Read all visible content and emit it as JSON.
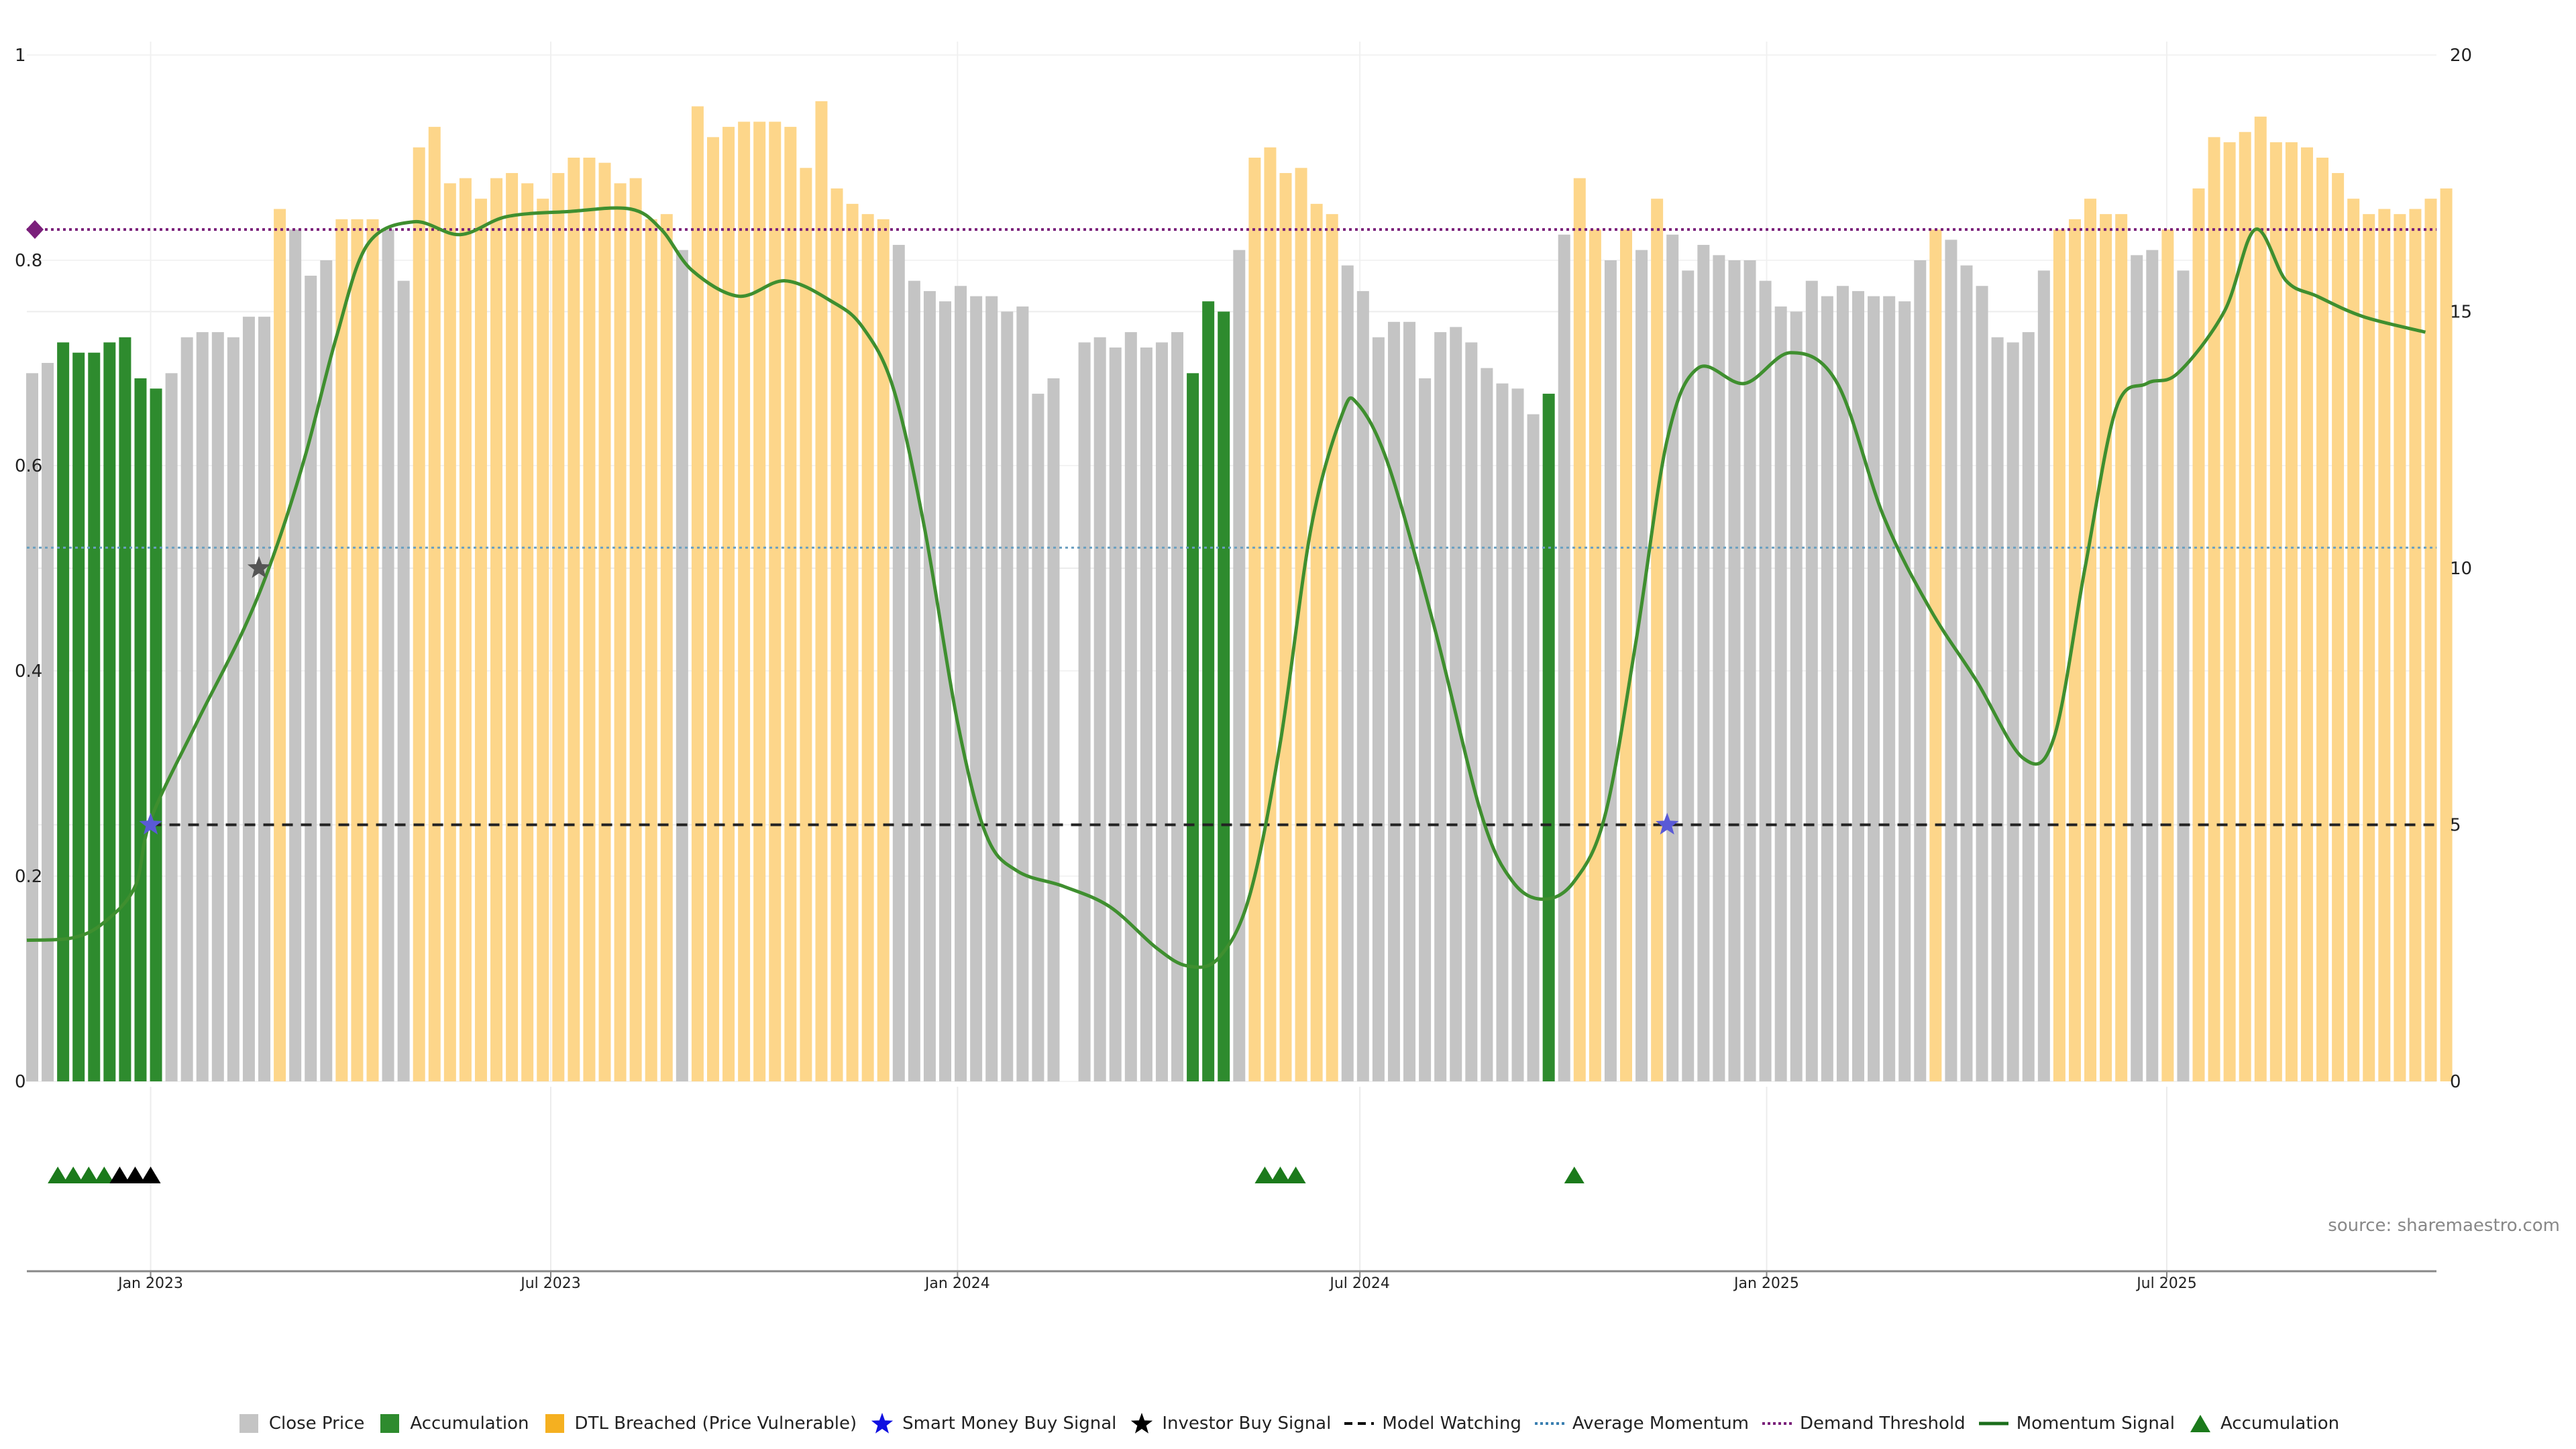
{
  "source_label": "source: sharemaestro.com",
  "colors": {
    "close": "#c4c4c4",
    "accumulation": "#2e8b2e",
    "dtl": "#fdd68a",
    "momentum_line": "#3f8f2f",
    "momentum_highlight": "#8a9a10",
    "smart_money": "#5a5ad6",
    "investor": "#555555",
    "watching": "#222222",
    "avg_momentum": "#6a9fc0",
    "demand": "#7a1f7a",
    "triangle_green": "#1b7a1b",
    "triangle_black": "#000000"
  },
  "legend": [
    {
      "label": "Close Price",
      "icon": "square-gray-icon"
    },
    {
      "label": "Accumulation",
      "icon": "square-green-icon"
    },
    {
      "label": "DTL Breached (Price Vulnerable)",
      "icon": "square-orange-icon"
    },
    {
      "label": "Smart Money Buy Signal",
      "icon": "star-blue-icon"
    },
    {
      "label": "Investor Buy Signal",
      "icon": "star-black-icon"
    },
    {
      "label": "Model Watching",
      "icon": "dashed-line-icon"
    },
    {
      "label": "Average Momentum",
      "icon": "dotted-blue-line-icon"
    },
    {
      "label": "Demand Threshold",
      "icon": "dotted-purple-line-icon"
    },
    {
      "label": "Momentum Signal",
      "icon": "solid-green-line-icon"
    },
    {
      "label": "Accumulation",
      "icon": "triangle-green-icon"
    }
  ],
  "chart_data": {
    "type": "bar",
    "left_axis": {
      "ticks": [
        "0",
        "0.2",
        "0.4",
        "0.6",
        "0.8",
        "1"
      ],
      "ylim": [
        0,
        1
      ]
    },
    "right_axis": {
      "ticks": [
        "0",
        "5",
        "10",
        "15",
        "20"
      ],
      "ylim": [
        0,
        20
      ]
    },
    "x_ticks": [
      {
        "label": "Jan 2023",
        "date": "2023-01-01"
      },
      {
        "label": "Jul 2023",
        "date": "2023-07-01"
      },
      {
        "label": "Jan 2024",
        "date": "2024-01-01"
      },
      {
        "label": "Jul 2024",
        "date": "2024-07-01"
      },
      {
        "label": "Jan 2025",
        "date": "2025-01-01"
      },
      {
        "label": "Jul 2025",
        "date": "2025-07-01"
      }
    ],
    "xlim": [
      "2022-11-06",
      "2025-10-31"
    ],
    "bars_start": "2022-11-06",
    "bar_interval_days": 7,
    "bar_values": [
      0.69,
      0.7,
      0.72,
      0.71,
      0.71,
      0.72,
      0.725,
      0.685,
      0.675,
      0.69,
      0.725,
      0.73,
      0.73,
      0.725,
      0.745,
      0.745,
      0.85,
      0.83,
      0.785,
      0.8,
      0.84,
      0.84,
      0.84,
      0.83,
      0.78,
      0.91,
      0.93,
      0.875,
      0.88,
      0.86,
      0.88,
      0.885,
      0.875,
      0.86,
      0.885,
      0.9,
      0.9,
      0.895,
      0.875,
      0.88,
      0.84,
      0.845,
      0.81,
      0.95,
      0.92,
      0.93,
      0.935,
      0.935,
      0.935,
      0.93,
      0.89,
      0.955,
      0.87,
      0.855,
      0.845,
      0.84,
      0.815,
      0.78,
      0.77,
      0.76,
      0.775,
      0.765,
      0.765,
      0.75,
      0.755,
      0.67,
      0.685,
      null,
      0.72,
      0.725,
      0.715,
      0.73,
      0.715,
      0.72,
      0.73,
      0.69,
      0.76,
      0.75,
      0.81,
      0.9,
      0.91,
      0.885,
      0.89,
      0.855,
      0.845,
      0.795,
      0.77,
      0.725,
      0.74,
      0.74,
      0.685,
      0.73,
      0.735,
      0.72,
      0.695,
      0.68,
      0.675,
      0.65,
      0.67,
      0.825,
      0.88,
      0.83,
      0.8,
      0.83,
      0.81,
      0.86,
      0.825,
      0.79,
      0.815,
      0.805,
      0.8,
      0.8,
      0.78,
      0.755,
      0.75,
      0.78,
      0.765,
      0.775,
      0.77,
      0.765,
      0.765,
      0.76,
      0.8,
      0.83,
      0.82,
      0.795,
      0.775,
      0.725,
      0.72,
      0.73,
      0.79,
      0.83,
      0.84,
      0.86,
      0.845,
      0.845,
      0.805,
      0.81,
      0.83,
      0.79,
      0.87,
      0.92,
      0.915,
      0.925,
      0.94,
      0.915,
      0.915,
      0.91,
      0.9,
      0.885,
      0.86,
      0.845,
      0.85,
      0.845,
      0.85,
      0.86,
      0.87
    ],
    "bar_categories": [
      "close",
      "close",
      "accumulation",
      "accumulation",
      "accumulation",
      "accumulation",
      "accumulation",
      "accumulation",
      "accumulation",
      "close",
      "close",
      "close",
      "close",
      "close",
      "close",
      "close",
      "dtl",
      "close",
      "close",
      "close",
      "dtl",
      "dtl",
      "dtl",
      "close",
      "close",
      "dtl",
      "dtl",
      "dtl",
      "dtl",
      "dtl",
      "dtl",
      "dtl",
      "dtl",
      "dtl",
      "dtl",
      "dtl",
      "dtl",
      "dtl",
      "dtl",
      "dtl",
      "dtl",
      "dtl",
      "close",
      "dtl",
      "dtl",
      "dtl",
      "dtl",
      "dtl",
      "dtl",
      "dtl",
      "dtl",
      "dtl",
      "dtl",
      "dtl",
      "dtl",
      "dtl",
      "close",
      "close",
      "close",
      "close",
      "close",
      "close",
      "close",
      "close",
      "close",
      "close",
      "close",
      "close",
      "close",
      "close",
      "close",
      "close",
      "close",
      "close",
      "close",
      "accumulation",
      "accumulation",
      "accumulation",
      "close",
      "dtl",
      "dtl",
      "dtl",
      "dtl",
      "dtl",
      "dtl",
      "close",
      "close",
      "close",
      "close",
      "close",
      "close",
      "close",
      "close",
      "close",
      "close",
      "close",
      "close",
      "close",
      "accumulation",
      "close",
      "dtl",
      "dtl",
      "close",
      "dtl",
      "close",
      "dtl",
      "close",
      "close",
      "close",
      "close",
      "close",
      "close",
      "close",
      "close",
      "close",
      "close",
      "close",
      "close",
      "close",
      "close",
      "close",
      "close",
      "close",
      "dtl",
      "close",
      "close",
      "close",
      "close",
      "close",
      "close",
      "close",
      "dtl",
      "dtl",
      "dtl",
      "dtl",
      "dtl",
      "close",
      "close",
      "dtl",
      "close",
      "dtl",
      "dtl",
      "dtl",
      "dtl",
      "dtl",
      "dtl",
      "dtl",
      "dtl",
      "dtl",
      "dtl",
      "dtl",
      "dtl",
      "dtl",
      "dtl",
      "dtl",
      "dtl",
      "dtl"
    ],
    "momentum_signal": [
      {
        "date": "2022-11-06",
        "value": 2.75
      },
      {
        "date": "2022-11-27",
        "value": 2.8
      },
      {
        "date": "2022-12-11",
        "value": 3.1
      },
      {
        "date": "2022-12-25",
        "value": 3.8
      },
      {
        "date": "2023-01-01",
        "value": 5.1
      },
      {
        "date": "2023-01-22",
        "value": 7.0
      },
      {
        "date": "2023-02-12",
        "value": 8.8
      },
      {
        "date": "2023-02-26",
        "value": 10.3
      },
      {
        "date": "2023-03-12",
        "value": 12.2
      },
      {
        "date": "2023-03-26",
        "value": 14.5
      },
      {
        "date": "2023-04-09",
        "value": 16.3
      },
      {
        "date": "2023-04-30",
        "value": 16.75
      },
      {
        "date": "2023-05-21",
        "value": 16.5
      },
      {
        "date": "2023-06-11",
        "value": 16.85
      },
      {
        "date": "2023-07-09",
        "value": 16.95
      },
      {
        "date": "2023-08-06",
        "value": 17.0
      },
      {
        "date": "2023-08-20",
        "value": 16.6
      },
      {
        "date": "2023-09-03",
        "value": 15.8
      },
      {
        "date": "2023-09-24",
        "value": 15.3
      },
      {
        "date": "2023-10-15",
        "value": 15.6
      },
      {
        "date": "2023-11-05",
        "value": 15.2
      },
      {
        "date": "2023-11-19",
        "value": 14.7
      },
      {
        "date": "2023-12-03",
        "value": 13.5
      },
      {
        "date": "2023-12-17",
        "value": 10.8
      },
      {
        "date": "2024-01-01",
        "value": 7.0
      },
      {
        "date": "2024-01-14",
        "value": 4.8
      },
      {
        "date": "2024-01-28",
        "value": 4.1
      },
      {
        "date": "2024-02-18",
        "value": 3.8
      },
      {
        "date": "2024-03-10",
        "value": 3.4
      },
      {
        "date": "2024-03-31",
        "value": 2.6
      },
      {
        "date": "2024-04-14",
        "value": 2.25
      },
      {
        "date": "2024-04-28",
        "value": 2.4
      },
      {
        "date": "2024-05-12",
        "value": 3.6
      },
      {
        "date": "2024-05-26",
        "value": 6.6
      },
      {
        "date": "2024-06-09",
        "value": 10.8
      },
      {
        "date": "2024-06-23",
        "value": 13.0
      },
      {
        "date": "2024-06-30",
        "value": 13.2
      },
      {
        "date": "2024-07-14",
        "value": 12.0
      },
      {
        "date": "2024-08-04",
        "value": 8.8
      },
      {
        "date": "2024-08-25",
        "value": 5.2
      },
      {
        "date": "2024-09-08",
        "value": 3.9
      },
      {
        "date": "2024-09-22",
        "value": 3.55
      },
      {
        "date": "2024-10-06",
        "value": 3.9
      },
      {
        "date": "2024-10-20",
        "value": 5.2
      },
      {
        "date": "2024-11-03",
        "value": 8.6
      },
      {
        "date": "2024-11-17",
        "value": 12.5
      },
      {
        "date": "2024-12-01",
        "value": 13.9
      },
      {
        "date": "2024-12-22",
        "value": 13.6
      },
      {
        "date": "2025-01-12",
        "value": 14.2
      },
      {
        "date": "2025-02-02",
        "value": 13.6
      },
      {
        "date": "2025-02-23",
        "value": 11.0
      },
      {
        "date": "2025-03-16",
        "value": 9.2
      },
      {
        "date": "2025-04-06",
        "value": 7.8
      },
      {
        "date": "2025-04-27",
        "value": 6.3
      },
      {
        "date": "2025-05-11",
        "value": 6.7
      },
      {
        "date": "2025-05-25",
        "value": 10.0
      },
      {
        "date": "2025-06-08",
        "value": 13.1
      },
      {
        "date": "2025-06-22",
        "value": 13.6
      },
      {
        "date": "2025-07-06",
        "value": 13.8
      },
      {
        "date": "2025-07-27",
        "value": 15.0
      },
      {
        "date": "2025-08-10",
        "value": 16.6
      },
      {
        "date": "2025-08-24",
        "value": 15.6
      },
      {
        "date": "2025-09-07",
        "value": 15.3
      },
      {
        "date": "2025-09-28",
        "value": 14.9
      },
      {
        "date": "2025-10-26",
        "value": 14.6
      }
    ],
    "model_watching": 5,
    "average_momentum": 0.52,
    "demand_threshold": 0.83,
    "smart_money_buy_signals": [
      {
        "date": "2023-01-01",
        "value": 5
      },
      {
        "date": "2024-11-17",
        "value": 5
      }
    ],
    "investor_buy_signals": [
      {
        "date": "2023-02-19",
        "value": 0.5
      }
    ],
    "accumulation_markers": [
      {
        "date": "2022-11-20",
        "color": "green"
      },
      {
        "date": "2022-11-27",
        "color": "green"
      },
      {
        "date": "2022-12-04",
        "color": "green"
      },
      {
        "date": "2022-12-11",
        "color": "green"
      },
      {
        "date": "2022-12-18",
        "color": "black"
      },
      {
        "date": "2022-12-25",
        "color": "black"
      },
      {
        "date": "2023-01-01",
        "color": "black"
      },
      {
        "date": "2024-05-19",
        "color": "green"
      },
      {
        "date": "2024-05-26",
        "color": "green"
      },
      {
        "date": "2024-06-02",
        "color": "green"
      },
      {
        "date": "2024-10-06",
        "color": "green"
      }
    ],
    "demand_marker": {
      "date": "2022-11-06",
      "value": 0.83
    },
    "grid": true
  }
}
